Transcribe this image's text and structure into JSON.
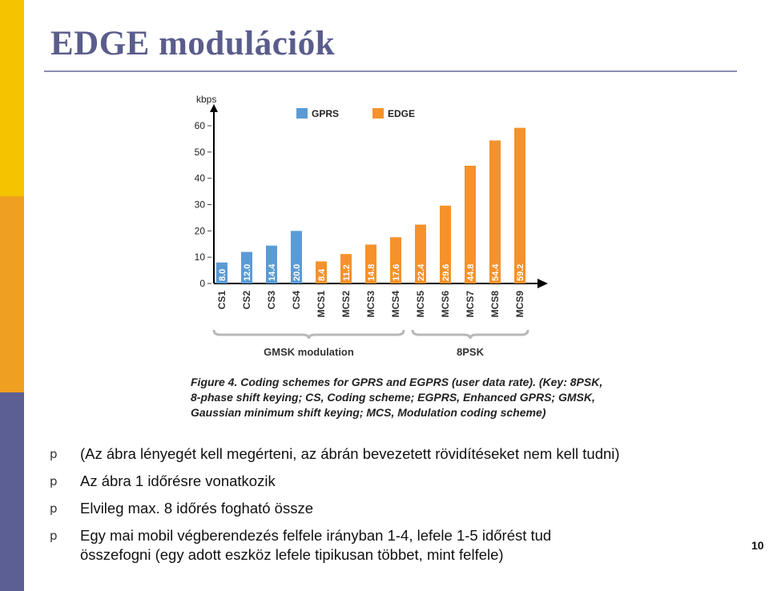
{
  "slide": {
    "title": "EDGE modulációk",
    "page_number": "10",
    "caption_lines": [
      "Figure 4. Coding schemes for GPRS and EGPRS (user data rate). (Key: 8PSK,",
      "8-phase shift keying; CS, Coding scheme; EGPRS, Enhanced GPRS; GMSK,",
      "Gaussian minimum shift keying; MCS, Modulation coding scheme)"
    ],
    "bullet_marker": "p",
    "bullets": [
      {
        "lines": [
          "(Az ábra lényegét kell megérteni, az ábrán bevezetett rövidítéseket nem kell tudni)"
        ]
      },
      {
        "lines": [
          "Az ábra 1 időrésre vonatkozik"
        ]
      },
      {
        "lines": [
          "Elvileg max. 8 időrés fogható össze"
        ]
      },
      {
        "lines": [
          "Egy mai mobil végberendezés felfele irányban 1-4, lefele 1-5 időrést tud",
          "összefogni (egy adott eszköz lefele tipikusan többet, mint felfele)"
        ]
      }
    ],
    "colors": {
      "title": "#5a5d8c",
      "sidebar": [
        "#f5c400",
        "#f0a020",
        "#5c5f94"
      ]
    }
  },
  "chart_data": {
    "type": "bar",
    "ylabel": "kbps",
    "ylim": [
      0,
      60
    ],
    "yticks": [
      0,
      10,
      20,
      30,
      40,
      50,
      60
    ],
    "legend": {
      "position": "top",
      "entries": [
        {
          "name": "GPRS",
          "color": "#5b9bd5"
        },
        {
          "name": "EDGE",
          "color": "#f5922b"
        }
      ]
    },
    "categories": [
      "CS1",
      "CS2",
      "CS3",
      "CS4",
      "MCS1",
      "MCS2",
      "MCS3",
      "MCS4",
      "MCS5",
      "MCS6",
      "MCS7",
      "MCS8",
      "MCS9"
    ],
    "values": [
      8.0,
      12.0,
      14.4,
      20.0,
      8.4,
      11.2,
      14.8,
      17.6,
      22.4,
      29.6,
      44.8,
      54.4,
      59.2
    ],
    "value_labels": [
      "8.0",
      "12.0",
      "14.4",
      "20.0",
      "8.4",
      "11.2",
      "14.8",
      "17.6",
      "22.4",
      "29.6",
      "44.8",
      "54.4",
      "59.2"
    ],
    "series_of_bar": [
      "GPRS",
      "GPRS",
      "GPRS",
      "GPRS",
      "EDGE",
      "EDGE",
      "EDGE",
      "EDGE",
      "EDGE",
      "EDGE",
      "EDGE",
      "EDGE",
      "EDGE"
    ],
    "groups": [
      {
        "label": "GMSK modulation",
        "from": "CS1",
        "to": "MCS4"
      },
      {
        "label": "8PSK",
        "from": "MCS5",
        "to": "MCS9"
      }
    ],
    "grid": false
  }
}
